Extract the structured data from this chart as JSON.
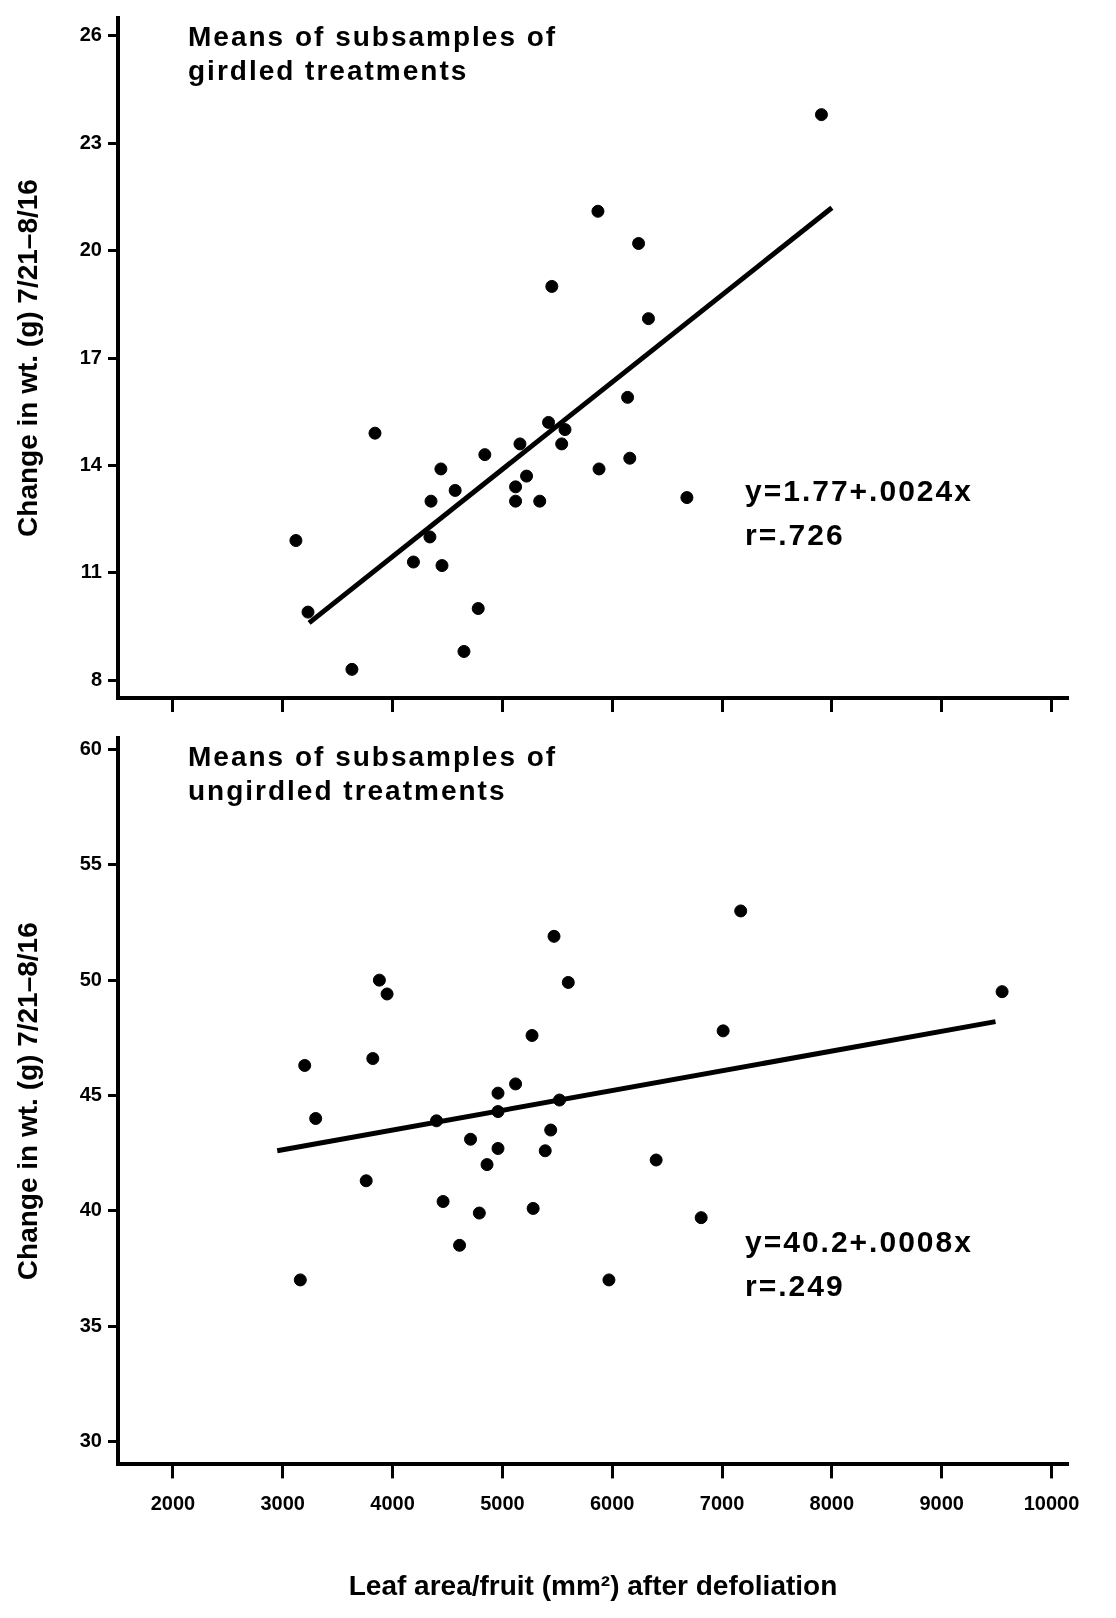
{
  "chart_data": [
    {
      "type": "scatter",
      "ylabel": "Change in wt. (g) 7/21–8/16",
      "xlim": [
        1500,
        10150
      ],
      "ylim": [
        7.5,
        26.5
      ],
      "xticks": [
        2000,
        3000,
        4000,
        5000,
        6000,
        7000,
        8000,
        9000,
        10000
      ],
      "yticks": [
        8,
        11,
        14,
        17,
        20,
        23,
        26
      ],
      "tick_labels": "y",
      "annotations": [
        "Means of subsamples of girdled treatments",
        "y=1.77+.0024x",
        "r=.726"
      ],
      "series": [
        {
          "marker": "circle",
          "color": "#000000",
          "x": [
            7905,
            5870,
            6240,
            5450,
            6330,
            6140,
            3840,
            5420,
            5570,
            5160,
            5540,
            4840,
            6160,
            4440,
            5880,
            4570,
            5120,
            5220,
            4350,
            5120,
            5340,
            6680,
            3120,
            4340,
            4190,
            4450,
            3230,
            4780,
            4650,
            3630
          ],
          "values": [
            23.8,
            21.1,
            20.2,
            19.0,
            18.1,
            15.9,
            14.9,
            15.2,
            15.0,
            14.6,
            14.6,
            14.3,
            14.2,
            13.9,
            13.9,
            13.3,
            13.4,
            13.7,
            13.0,
            13.0,
            13.0,
            13.1,
            11.9,
            12.0,
            11.3,
            11.2,
            9.9,
            10.0,
            8.8,
            8.3
          ]
        },
        {
          "type": "line",
          "marker": "none",
          "color": "#000000",
          "x": [
            3240,
            8000
          ],
          "values": [
            9.6,
            21.2
          ]
        }
      ]
    },
    {
      "type": "scatter",
      "ylabel": "Change in wt. (g) 7/21–8/16",
      "xlabel": "Leaf area/fruit (mm²) after defoliation",
      "xlim": [
        1500,
        10150
      ],
      "ylim": [
        29,
        60.5
      ],
      "xticks": [
        2000,
        3000,
        4000,
        5000,
        6000,
        7000,
        8000,
        9000,
        10000
      ],
      "yticks": [
        30,
        35,
        40,
        45,
        50,
        55,
        60
      ],
      "annotations": [
        "Means of subsamples of ungirdled treatments",
        "y=40.2+.0008x",
        "r=.249"
      ],
      "series": [
        {
          "marker": "circle",
          "color": "#000000",
          "x": [
            7170,
            5470,
            3880,
            3950,
            5600,
            9550,
            7010,
            5270,
            3820,
            3200,
            5120,
            4960,
            5520,
            4960,
            3300,
            4400,
            5440,
            4710,
            4960,
            5390,
            6400,
            4860,
            3760,
            4460,
            5280,
            4790,
            6810,
            4610,
            3160,
            5970
          ],
          "values": [
            53.0,
            51.9,
            50.0,
            49.4,
            49.9,
            49.5,
            47.8,
            47.6,
            46.6,
            46.3,
            45.5,
            45.1,
            44.8,
            44.3,
            44.0,
            43.9,
            43.5,
            43.1,
            42.7,
            42.6,
            42.2,
            42.0,
            41.3,
            40.4,
            40.1,
            39.9,
            39.7,
            38.5,
            37.0,
            37.0
          ]
        },
        {
          "type": "line",
          "marker": "none",
          "color": "#000000",
          "x": [
            2950,
            9490
          ],
          "values": [
            42.6,
            48.2
          ]
        }
      ]
    }
  ]
}
